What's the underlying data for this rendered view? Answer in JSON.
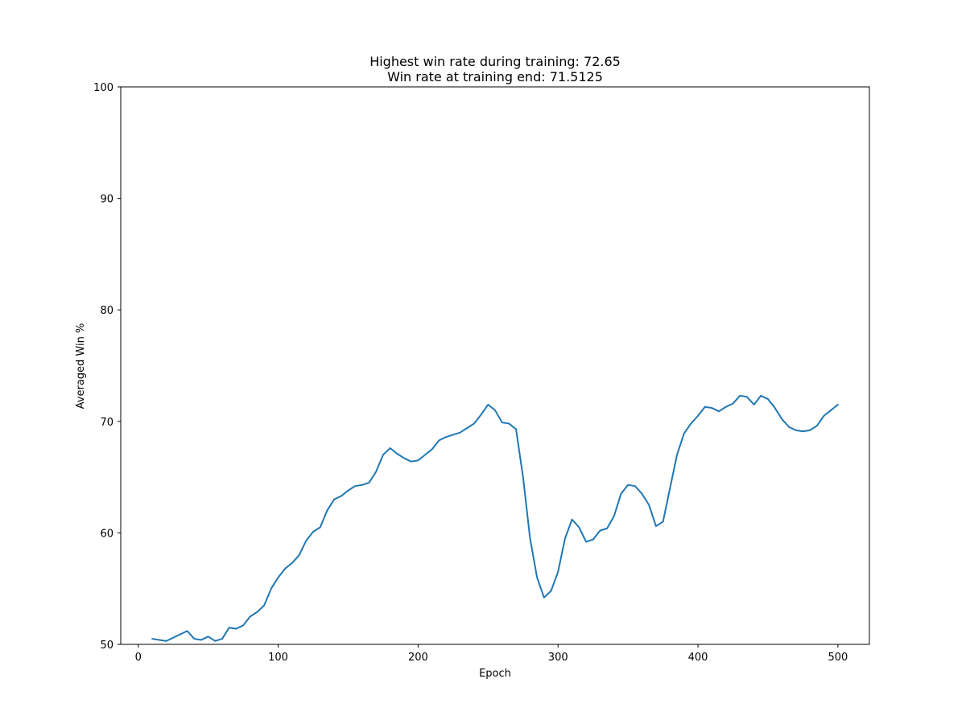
{
  "chart_data": {
    "type": "line",
    "title": "Highest win rate during training: 72.65",
    "subtitle": "Win rate at training end: 71.5125",
    "xlabel": "Epoch",
    "ylabel": "Averaged Win %",
    "xlim": [
      -12.5,
      522.5
    ],
    "ylim": [
      50,
      100
    ],
    "x_ticks": [
      0,
      100,
      200,
      300,
      400,
      500
    ],
    "x_tick_labels": [
      "0",
      "100",
      "200",
      "300",
      "400",
      "500"
    ],
    "y_ticks": [
      50,
      60,
      70,
      80,
      90,
      100
    ],
    "y_tick_labels": [
      "50",
      "60",
      "70",
      "80",
      "90",
      "100"
    ],
    "grid": false,
    "series": [
      {
        "color": "#1f77b4",
        "x": [
          10,
          15,
          20,
          25,
          30,
          35,
          40,
          45,
          50,
          55,
          60,
          65,
          70,
          75,
          80,
          85,
          90,
          95,
          100,
          105,
          110,
          115,
          120,
          125,
          130,
          135,
          140,
          145,
          150,
          155,
          160,
          165,
          170,
          175,
          180,
          185,
          190,
          195,
          200,
          205,
          210,
          215,
          220,
          225,
          230,
          235,
          240,
          245,
          250,
          255,
          260,
          265,
          270,
          275,
          280,
          285,
          290,
          295,
          300,
          305,
          310,
          315,
          320,
          325,
          330,
          335,
          340,
          345,
          350,
          355,
          360,
          365,
          370,
          375,
          380,
          385,
          390,
          395,
          400,
          405,
          410,
          415,
          420,
          425,
          430,
          435,
          440,
          445,
          450,
          455,
          460,
          465,
          470,
          475,
          480,
          485,
          490,
          495,
          500
        ],
        "y": [
          50.5,
          50.4,
          50.3,
          50.6,
          50.9,
          51.2,
          50.5,
          50.4,
          50.7,
          50.3,
          50.5,
          51.5,
          51.4,
          51.7,
          52.5,
          52.9,
          53.5,
          55.0,
          56.0,
          56.8,
          57.3,
          58.0,
          59.3,
          60.1,
          60.5,
          62.0,
          63.0,
          63.3,
          63.8,
          64.2,
          64.3,
          64.5,
          65.5,
          67.0,
          67.6,
          67.1,
          66.7,
          66.4,
          66.5,
          67.0,
          67.5,
          68.3,
          68.6,
          68.8,
          69.0,
          69.4,
          69.8,
          70.6,
          71.5,
          71.0,
          69.9,
          69.8,
          69.3,
          65.0,
          59.5,
          56.0,
          54.2,
          54.8,
          56.5,
          59.5,
          61.2,
          60.5,
          59.2,
          59.4,
          60.2,
          60.4,
          61.5,
          63.5,
          64.3,
          64.2,
          63.5,
          62.5,
          60.6,
          61.0,
          64.0,
          67.0,
          68.9,
          69.8,
          70.5,
          71.3,
          71.2,
          70.9,
          71.3,
          71.6,
          72.3,
          72.2,
          71.5,
          72.3,
          72.0,
          71.2,
          70.2,
          69.5,
          69.2,
          69.1,
          69.2,
          69.6,
          70.5,
          71.0,
          71.5
        ]
      }
    ]
  }
}
